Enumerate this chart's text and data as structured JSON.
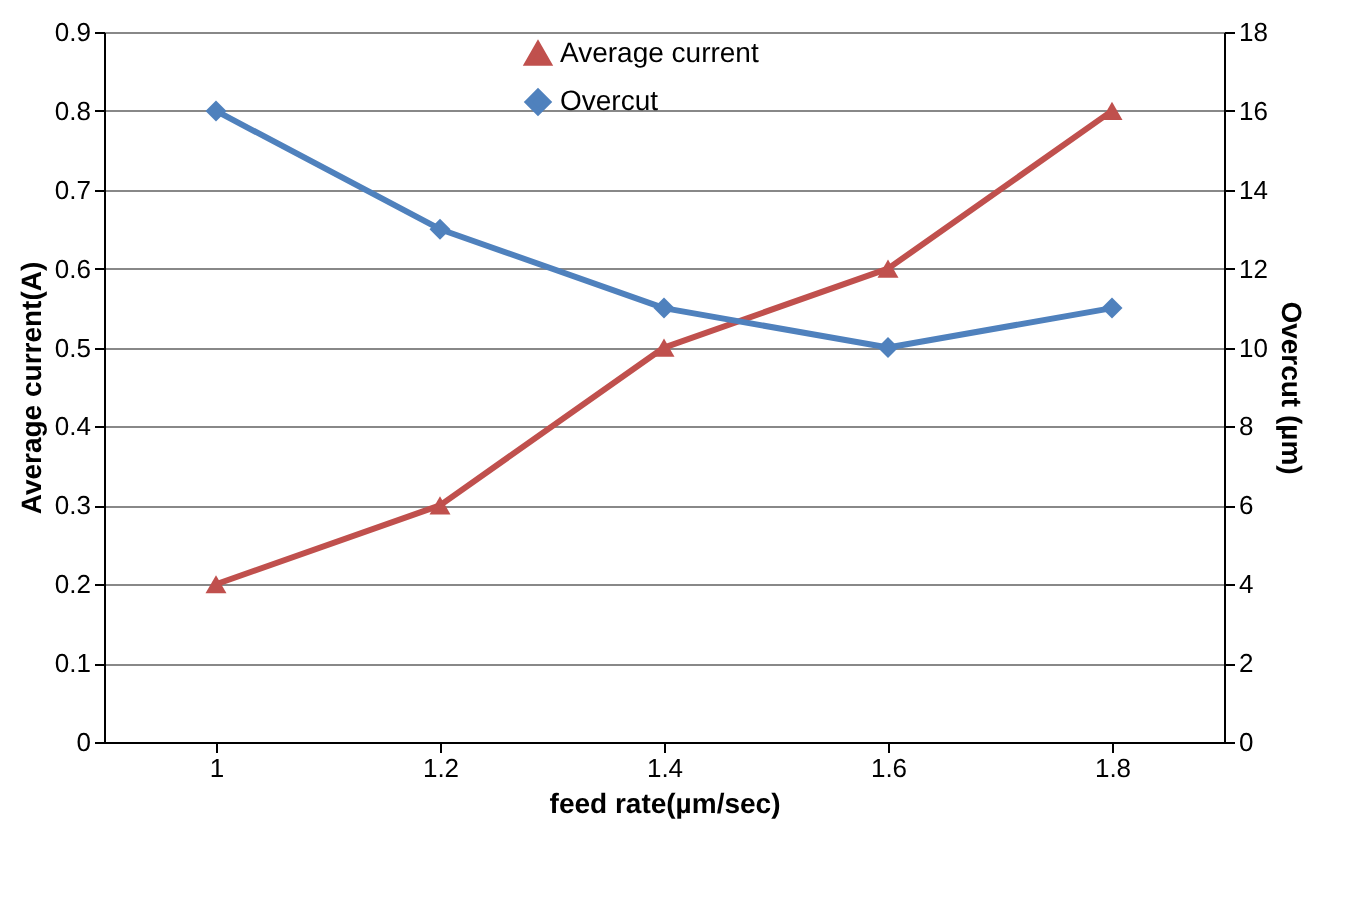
{
  "chart_data": {
    "type": "line",
    "xlabel": "feed rate(µm/sec)",
    "ylabel": "Average current(A)",
    "y2label": "Overcut (µm)",
    "categories": [
      "1",
      "1.2",
      "1.4",
      "1.6",
      "1.8"
    ],
    "series": [
      {
        "name": "Average current",
        "color": "#c0504d",
        "marker": "triangle",
        "values": [
          0.2,
          0.3,
          0.5,
          0.6,
          0.8
        ]
      },
      {
        "name": "Overcut",
        "color": "#4f81bd",
        "marker": "diamond",
        "axis": "y2",
        "values": [
          16,
          13,
          11,
          10,
          11
        ]
      }
    ],
    "ylim": [
      0,
      0.9
    ],
    "yticks": [
      0,
      0.1,
      0.2,
      0.3,
      0.4,
      0.5,
      0.6,
      0.7,
      0.8,
      0.9
    ],
    "y2lim": [
      0,
      18
    ],
    "y2ticks": [
      0,
      2,
      4,
      6,
      8,
      10,
      12,
      14,
      16,
      18
    ],
    "grid": "y",
    "legend": "top"
  }
}
